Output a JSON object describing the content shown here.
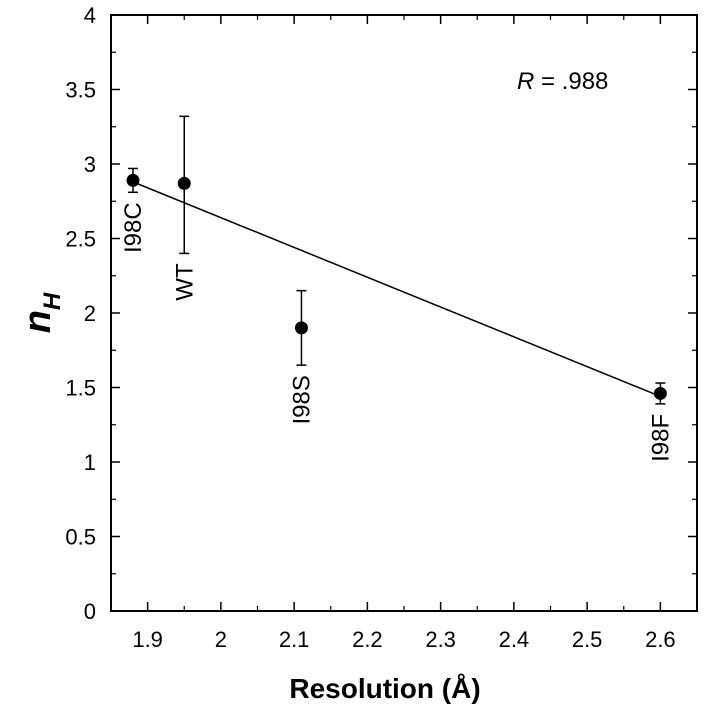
{
  "chart_data": {
    "type": "scatter",
    "title": "",
    "xlabel": "Resolution (Å)",
    "ylabel": {
      "main": "n",
      "sub": "H"
    },
    "xlim": [
      1.85,
      2.65
    ],
    "ylim": [
      0,
      4
    ],
    "x_ticks": [
      "1.9",
      "2",
      "2.1",
      "2.2",
      "2.3",
      "2.4",
      "2.5",
      "2.6"
    ],
    "y_ticks": [
      "0",
      "0.5",
      "1",
      "1.5",
      "2",
      "2.5",
      "3",
      "3.5",
      "4"
    ],
    "grid": false,
    "points": [
      {
        "label": "I98C",
        "x": 1.88,
        "y": 2.89,
        "err_low": 2.81,
        "err_high": 2.97
      },
      {
        "label": "WT",
        "x": 1.95,
        "y": 2.87,
        "err_low": 2.4,
        "err_high": 3.32
      },
      {
        "label": "I98S",
        "x": 2.11,
        "y": 1.9,
        "err_low": 1.65,
        "err_high": 2.15
      },
      {
        "label": "I98F",
        "x": 2.6,
        "y": 1.46,
        "err_low": 1.39,
        "err_high": 1.53
      }
    ],
    "fit_line": {
      "x": [
        1.88,
        2.6
      ],
      "y": [
        2.88,
        1.44
      ]
    },
    "annotation": {
      "label": "R",
      "text": " = .988"
    }
  }
}
